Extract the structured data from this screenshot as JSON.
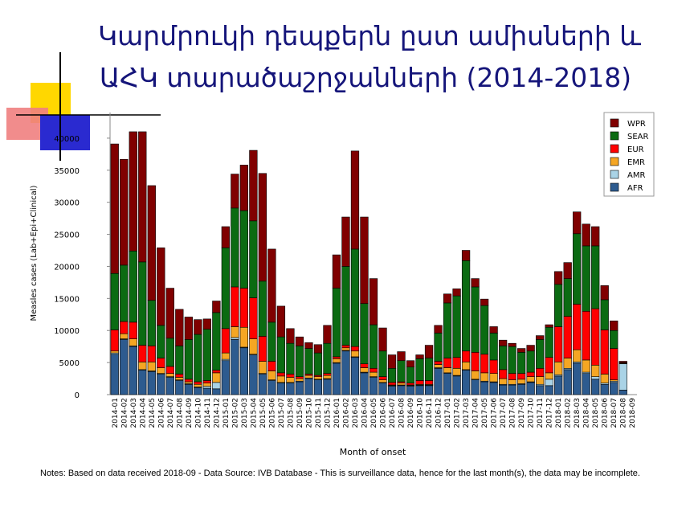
{
  "chart_data": {
    "type": "stacked_bar",
    "title_lines": [
      "Կարմրուկի դեպքերն ըստ ամիսների և",
      "ԱՀԿ տարածաշրջանների (2014-2018)"
    ],
    "ylabel": "Measles cases (Lab+Epi+Clinical)",
    "xlabel": "Month of onset",
    "note": "Notes: Based on data received 2018-09 - Data Source: IVB Database - This is surveillance data, hence for the last month(s), the data may be incomplete.",
    "categories": [
      "2014-01",
      "2014-02",
      "2014-03",
      "2014-04",
      "2014-05",
      "2014-06",
      "2014-07",
      "2014-08",
      "2014-09",
      "2014-10",
      "2014-11",
      "2014-12",
      "2015-01",
      "2015-02",
      "2015-03",
      "2015-04",
      "2015-05",
      "2015-06",
      "2015-07",
      "2015-08",
      "2015-09",
      "2015-10",
      "2015-11",
      "2015-12",
      "2016-01",
      "2016-02",
      "2016-03",
      "2016-04",
      "2016-05",
      "2016-06",
      "2016-07",
      "2016-08",
      "2016-09",
      "2016-10",
      "2016-11",
      "2016-12",
      "2017-01",
      "2017-02",
      "2017-03",
      "2017-04",
      "2017-05",
      "2017-06",
      "2017-07",
      "2017-08",
      "2017-09",
      "2017-10",
      "2017-11",
      "2017-12",
      "2018-01",
      "2018-02",
      "2018-03",
      "2018-04",
      "2018-05",
      "2018-06",
      "2018-07",
      "2018-08",
      "2018-09"
    ],
    "series": [
      {
        "name": "AFR",
        "color": "#2d5b8f",
        "values": [
          6300,
          8600,
          7500,
          3800,
          3600,
          3200,
          2700,
          2200,
          1600,
          1100,
          1000,
          900,
          5300,
          8600,
          7300,
          6200,
          3200,
          2200,
          1800,
          1800,
          2000,
          2500,
          2300,
          2400,
          4900,
          6800,
          5800,
          3400,
          2700,
          1800,
          1300,
          1400,
          1300,
          1400,
          1400,
          4100,
          3300,
          2900,
          3800,
          2300,
          2000,
          1900,
          1500,
          1500,
          1600,
          1900,
          1400,
          1400,
          2900,
          3900,
          4900,
          3300,
          2400,
          1600,
          1900,
          700,
          0
        ]
      },
      {
        "name": "AMR",
        "color": "#a9d3e6",
        "values": [
          200,
          100,
          100,
          100,
          100,
          100,
          100,
          100,
          100,
          100,
          300,
          1000,
          200,
          300,
          100,
          100,
          100,
          100,
          100,
          100,
          100,
          100,
          100,
          100,
          100,
          100,
          100,
          100,
          100,
          100,
          100,
          100,
          100,
          100,
          100,
          100,
          100,
          100,
          100,
          100,
          100,
          100,
          100,
          100,
          100,
          100,
          200,
          1000,
          200,
          200,
          200,
          200,
          400,
          200,
          200,
          4100,
          0
        ]
      },
      {
        "name": "EMR",
        "color": "#f5a623",
        "values": [
          300,
          800,
          1100,
          1200,
          1400,
          900,
          500,
          400,
          300,
          400,
          500,
          1500,
          1000,
          1700,
          3100,
          2400,
          1900,
          1400,
          1000,
          800,
          400,
          400,
          400,
          500,
          600,
          400,
          900,
          700,
          700,
          400,
          100,
          300,
          100,
          100,
          100,
          500,
          800,
          1100,
          1200,
          1300,
          1300,
          1300,
          900,
          700,
          700,
          800,
          1200,
          1000,
          2000,
          1600,
          1900,
          1900,
          1800,
          1400,
          200,
          100,
          0
        ]
      },
      {
        "name": "EUR",
        "color": "#ff0000",
        "values": [
          3300,
          1900,
          2600,
          2600,
          2500,
          1500,
          1100,
          500,
          400,
          400,
          400,
          400,
          3800,
          6200,
          6100,
          6400,
          3900,
          1500,
          500,
          500,
          300,
          200,
          200,
          300,
          300,
          400,
          700,
          600,
          600,
          500,
          400,
          200,
          300,
          600,
          600,
          500,
          1500,
          1700,
          1700,
          2900,
          2900,
          2100,
          1400,
          1000,
          900,
          700,
          1300,
          2400,
          5500,
          6500,
          7100,
          7600,
          8800,
          6900,
          4900,
          0,
          0
        ]
      },
      {
        "name": "SEAR",
        "color": "#0b6b12",
        "values": [
          8800,
          8800,
          11100,
          13000,
          7100,
          5100,
          4400,
          4400,
          6200,
          7400,
          8000,
          9000,
          12600,
          12300,
          12100,
          12000,
          8600,
          6100,
          5600,
          4800,
          4800,
          4000,
          3500,
          4700,
          10700,
          12300,
          15200,
          9400,
          6800,
          4000,
          2200,
          3300,
          2500,
          3400,
          3500,
          4400,
          8600,
          9600,
          14100,
          10200,
          7600,
          4200,
          3700,
          4200,
          3300,
          3300,
          4500,
          4700,
          6600,
          5900,
          11000,
          10200,
          9800,
          4700,
          2800,
          100,
          0
        ]
      },
      {
        "name": "WPR",
        "color": "#800000",
        "values": [
          20200,
          16500,
          18600,
          20300,
          17900,
          12100,
          7800,
          5700,
          3500,
          2300,
          1600,
          1800,
          3300,
          5300,
          7100,
          11000,
          16800,
          11400,
          4800,
          2300,
          1400,
          900,
          1300,
          2800,
          5200,
          7700,
          15300,
          13500,
          7200,
          3600,
          2100,
          1400,
          1000,
          600,
          2000,
          1200,
          1400,
          1100,
          1600,
          1300,
          1000,
          1000,
          900,
          500,
          600,
          900,
          600,
          400,
          2000,
          2500,
          3400,
          3400,
          3000,
          2200,
          1500,
          200,
          0
        ]
      }
    ],
    "ylim": [
      0,
      44000
    ],
    "yticks": [
      0,
      5000,
      10000,
      15000,
      20000,
      25000,
      30000,
      35000,
      40000
    ]
  }
}
